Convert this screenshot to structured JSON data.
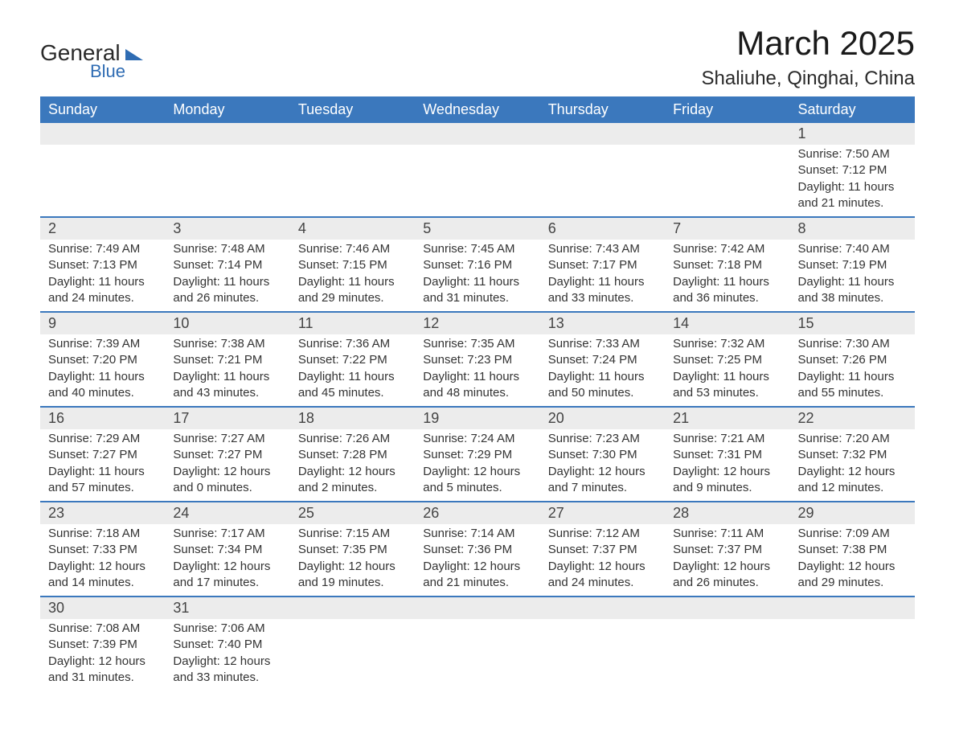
{
  "brand": {
    "general": "General",
    "blue": "Blue"
  },
  "title": "March 2025",
  "location": "Shaliuhe, Qinghai, China",
  "colors": {
    "header_bg": "#3b78bd",
    "header_text": "#ffffff",
    "daynum_bg": "#ececec",
    "row_border": "#3b78bd",
    "text": "#333333",
    "logo_blue": "#2f6cb3",
    "background": "#ffffff"
  },
  "typography": {
    "title_fontsize": 42,
    "location_fontsize": 24,
    "weekday_fontsize": 18,
    "daynum_fontsize": 18,
    "body_fontsize": 15
  },
  "layout": {
    "columns": 7,
    "rows": 6,
    "type": "calendar-table"
  },
  "weekdays": [
    "Sunday",
    "Monday",
    "Tuesday",
    "Wednesday",
    "Thursday",
    "Friday",
    "Saturday"
  ],
  "weeks": [
    [
      null,
      null,
      null,
      null,
      null,
      null,
      {
        "day": "1",
        "sunrise": "Sunrise: 7:50 AM",
        "sunset": "Sunset: 7:12 PM",
        "daylight1": "Daylight: 11 hours",
        "daylight2": "and 21 minutes."
      }
    ],
    [
      {
        "day": "2",
        "sunrise": "Sunrise: 7:49 AM",
        "sunset": "Sunset: 7:13 PM",
        "daylight1": "Daylight: 11 hours",
        "daylight2": "and 24 minutes."
      },
      {
        "day": "3",
        "sunrise": "Sunrise: 7:48 AM",
        "sunset": "Sunset: 7:14 PM",
        "daylight1": "Daylight: 11 hours",
        "daylight2": "and 26 minutes."
      },
      {
        "day": "4",
        "sunrise": "Sunrise: 7:46 AM",
        "sunset": "Sunset: 7:15 PM",
        "daylight1": "Daylight: 11 hours",
        "daylight2": "and 29 minutes."
      },
      {
        "day": "5",
        "sunrise": "Sunrise: 7:45 AM",
        "sunset": "Sunset: 7:16 PM",
        "daylight1": "Daylight: 11 hours",
        "daylight2": "and 31 minutes."
      },
      {
        "day": "6",
        "sunrise": "Sunrise: 7:43 AM",
        "sunset": "Sunset: 7:17 PM",
        "daylight1": "Daylight: 11 hours",
        "daylight2": "and 33 minutes."
      },
      {
        "day": "7",
        "sunrise": "Sunrise: 7:42 AM",
        "sunset": "Sunset: 7:18 PM",
        "daylight1": "Daylight: 11 hours",
        "daylight2": "and 36 minutes."
      },
      {
        "day": "8",
        "sunrise": "Sunrise: 7:40 AM",
        "sunset": "Sunset: 7:19 PM",
        "daylight1": "Daylight: 11 hours",
        "daylight2": "and 38 minutes."
      }
    ],
    [
      {
        "day": "9",
        "sunrise": "Sunrise: 7:39 AM",
        "sunset": "Sunset: 7:20 PM",
        "daylight1": "Daylight: 11 hours",
        "daylight2": "and 40 minutes."
      },
      {
        "day": "10",
        "sunrise": "Sunrise: 7:38 AM",
        "sunset": "Sunset: 7:21 PM",
        "daylight1": "Daylight: 11 hours",
        "daylight2": "and 43 minutes."
      },
      {
        "day": "11",
        "sunrise": "Sunrise: 7:36 AM",
        "sunset": "Sunset: 7:22 PM",
        "daylight1": "Daylight: 11 hours",
        "daylight2": "and 45 minutes."
      },
      {
        "day": "12",
        "sunrise": "Sunrise: 7:35 AM",
        "sunset": "Sunset: 7:23 PM",
        "daylight1": "Daylight: 11 hours",
        "daylight2": "and 48 minutes."
      },
      {
        "day": "13",
        "sunrise": "Sunrise: 7:33 AM",
        "sunset": "Sunset: 7:24 PM",
        "daylight1": "Daylight: 11 hours",
        "daylight2": "and 50 minutes."
      },
      {
        "day": "14",
        "sunrise": "Sunrise: 7:32 AM",
        "sunset": "Sunset: 7:25 PM",
        "daylight1": "Daylight: 11 hours",
        "daylight2": "and 53 minutes."
      },
      {
        "day": "15",
        "sunrise": "Sunrise: 7:30 AM",
        "sunset": "Sunset: 7:26 PM",
        "daylight1": "Daylight: 11 hours",
        "daylight2": "and 55 minutes."
      }
    ],
    [
      {
        "day": "16",
        "sunrise": "Sunrise: 7:29 AM",
        "sunset": "Sunset: 7:27 PM",
        "daylight1": "Daylight: 11 hours",
        "daylight2": "and 57 minutes."
      },
      {
        "day": "17",
        "sunrise": "Sunrise: 7:27 AM",
        "sunset": "Sunset: 7:27 PM",
        "daylight1": "Daylight: 12 hours",
        "daylight2": "and 0 minutes."
      },
      {
        "day": "18",
        "sunrise": "Sunrise: 7:26 AM",
        "sunset": "Sunset: 7:28 PM",
        "daylight1": "Daylight: 12 hours",
        "daylight2": "and 2 minutes."
      },
      {
        "day": "19",
        "sunrise": "Sunrise: 7:24 AM",
        "sunset": "Sunset: 7:29 PM",
        "daylight1": "Daylight: 12 hours",
        "daylight2": "and 5 minutes."
      },
      {
        "day": "20",
        "sunrise": "Sunrise: 7:23 AM",
        "sunset": "Sunset: 7:30 PM",
        "daylight1": "Daylight: 12 hours",
        "daylight2": "and 7 minutes."
      },
      {
        "day": "21",
        "sunrise": "Sunrise: 7:21 AM",
        "sunset": "Sunset: 7:31 PM",
        "daylight1": "Daylight: 12 hours",
        "daylight2": "and 9 minutes."
      },
      {
        "day": "22",
        "sunrise": "Sunrise: 7:20 AM",
        "sunset": "Sunset: 7:32 PM",
        "daylight1": "Daylight: 12 hours",
        "daylight2": "and 12 minutes."
      }
    ],
    [
      {
        "day": "23",
        "sunrise": "Sunrise: 7:18 AM",
        "sunset": "Sunset: 7:33 PM",
        "daylight1": "Daylight: 12 hours",
        "daylight2": "and 14 minutes."
      },
      {
        "day": "24",
        "sunrise": "Sunrise: 7:17 AM",
        "sunset": "Sunset: 7:34 PM",
        "daylight1": "Daylight: 12 hours",
        "daylight2": "and 17 minutes."
      },
      {
        "day": "25",
        "sunrise": "Sunrise: 7:15 AM",
        "sunset": "Sunset: 7:35 PM",
        "daylight1": "Daylight: 12 hours",
        "daylight2": "and 19 minutes."
      },
      {
        "day": "26",
        "sunrise": "Sunrise: 7:14 AM",
        "sunset": "Sunset: 7:36 PM",
        "daylight1": "Daylight: 12 hours",
        "daylight2": "and 21 minutes."
      },
      {
        "day": "27",
        "sunrise": "Sunrise: 7:12 AM",
        "sunset": "Sunset: 7:37 PM",
        "daylight1": "Daylight: 12 hours",
        "daylight2": "and 24 minutes."
      },
      {
        "day": "28",
        "sunrise": "Sunrise: 7:11 AM",
        "sunset": "Sunset: 7:37 PM",
        "daylight1": "Daylight: 12 hours",
        "daylight2": "and 26 minutes."
      },
      {
        "day": "29",
        "sunrise": "Sunrise: 7:09 AM",
        "sunset": "Sunset: 7:38 PM",
        "daylight1": "Daylight: 12 hours",
        "daylight2": "and 29 minutes."
      }
    ],
    [
      {
        "day": "30",
        "sunrise": "Sunrise: 7:08 AM",
        "sunset": "Sunset: 7:39 PM",
        "daylight1": "Daylight: 12 hours",
        "daylight2": "and 31 minutes."
      },
      {
        "day": "31",
        "sunrise": "Sunrise: 7:06 AM",
        "sunset": "Sunset: 7:40 PM",
        "daylight1": "Daylight: 12 hours",
        "daylight2": "and 33 minutes."
      },
      null,
      null,
      null,
      null,
      null
    ]
  ]
}
